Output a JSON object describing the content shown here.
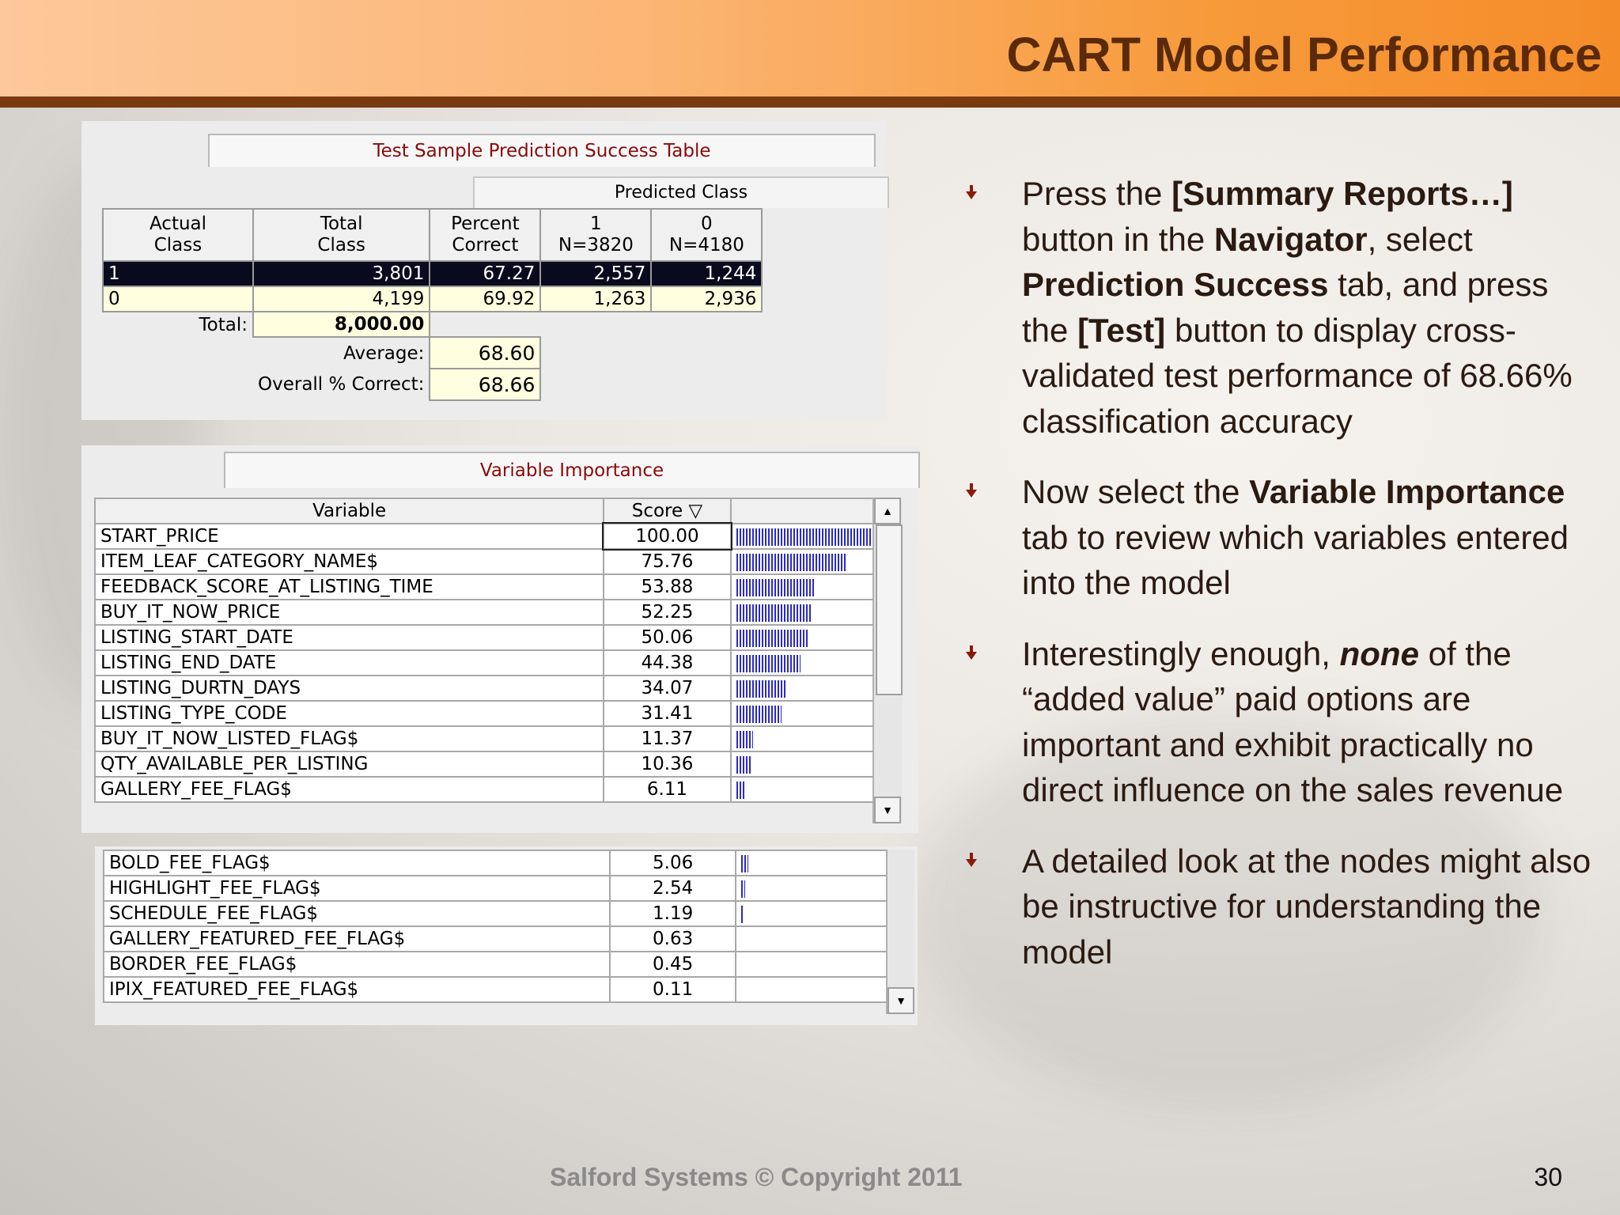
{
  "slide": {
    "title": "CART Model Performance",
    "footer": "Salford Systems   © Copyright 2011",
    "page_number": "30"
  },
  "prediction_table": {
    "caption": "Test Sample Prediction Success Table",
    "predicted_class_label": "Predicted Class",
    "headers": [
      [
        "Actual",
        "Class"
      ],
      [
        "Total",
        "Class"
      ],
      [
        "Percent",
        "Correct"
      ],
      [
        "1",
        "N=3820"
      ],
      [
        "0",
        "N=4180"
      ]
    ],
    "rows": [
      [
        "1",
        "3,801",
        "67.27",
        "2,557",
        "1,244"
      ],
      [
        "0",
        "4,199",
        "69.92",
        "1,263",
        "2,936"
      ]
    ],
    "total_label": "Total:",
    "total_value": "8,000.00",
    "average_label": "Average:",
    "average_value": "68.60",
    "overall_label": "Overall % Correct:",
    "overall_value": "68.66"
  },
  "variable_importance": {
    "caption": "Variable Importance",
    "col_variable": "Variable",
    "col_score": "Score",
    "rows": [
      {
        "variable": "START_PRICE",
        "score": "100.00",
        "value": 100.0
      },
      {
        "variable": "ITEM_LEAF_CATEGORY_NAME$",
        "score": "75.76",
        "value": 75.76
      },
      {
        "variable": "FEEDBACK_SCORE_AT_LISTING_TIME",
        "score": "53.88",
        "value": 53.88
      },
      {
        "variable": "BUY_IT_NOW_PRICE",
        "score": "52.25",
        "value": 52.25
      },
      {
        "variable": "LISTING_START_DATE",
        "score": "50.06",
        "value": 50.06
      },
      {
        "variable": "LISTING_END_DATE",
        "score": "44.38",
        "value": 44.38
      },
      {
        "variable": "LISTING_DURTN_DAYS",
        "score": "34.07",
        "value": 34.07
      },
      {
        "variable": "LISTING_TYPE_CODE",
        "score": "31.41",
        "value": 31.41
      },
      {
        "variable": "BUY_IT_NOW_LISTED_FLAG$",
        "score": "11.37",
        "value": 11.37
      },
      {
        "variable": "QTY_AVAILABLE_PER_LISTING",
        "score": "10.36",
        "value": 10.36
      },
      {
        "variable": "GALLERY_FEE_FLAG$",
        "score": "6.11",
        "value": 6.11
      }
    ],
    "rows_continued": [
      {
        "variable": "BOLD_FEE_FLAG$",
        "score": "5.06",
        "value": 5.06
      },
      {
        "variable": "HIGHLIGHT_FEE_FLAG$",
        "score": "2.54",
        "value": 2.54
      },
      {
        "variable": "SCHEDULE_FEE_FLAG$",
        "score": "1.19",
        "value": 1.19
      },
      {
        "variable": "GALLERY_FEATURED_FEE_FLAG$",
        "score": "0.63",
        "value": 0.63
      },
      {
        "variable": "BORDER_FEE_FLAG$",
        "score": "0.45",
        "value": 0.45
      },
      {
        "variable": "IPIX_FEATURED_FEE_FLAG$",
        "score": "0.11",
        "value": 0.11
      }
    ]
  },
  "bullets": [
    [
      {
        "t": "Press the ",
        "s": ""
      },
      {
        "t": "[Summary Reports…]",
        "s": "b"
      },
      {
        "t": " button in the ",
        "s": ""
      },
      {
        "t": "Navigator",
        "s": "b"
      },
      {
        "t": ", select ",
        "s": ""
      },
      {
        "t": "Prediction Success",
        "s": "b"
      },
      {
        "t": " tab, and press the ",
        "s": ""
      },
      {
        "t": "[Test]",
        "s": "b"
      },
      {
        "t": " button to display cross-validated test performance of 68.66% classification accuracy",
        "s": ""
      }
    ],
    [
      {
        "t": "Now select the ",
        "s": ""
      },
      {
        "t": "Variable Importance",
        "s": "b"
      },
      {
        "t": " tab to review which variables entered into the model",
        "s": ""
      }
    ],
    [
      {
        "t": "Interestingly enough, ",
        "s": ""
      },
      {
        "t": "none",
        "s": "bi"
      },
      {
        "t": " of the “added value” paid options are important and exhibit practically no direct influence on the sales revenue",
        "s": ""
      }
    ],
    [
      {
        "t": "A detailed look at the nodes might also be instructive for understanding the model",
        "s": ""
      }
    ]
  ],
  "colors": {
    "header_start": "#fdc89a",
    "header_end": "#f58c2a",
    "header_bar": "#7a3a10",
    "title": "#5a2a0a",
    "bullet_arrow": "#8a1a0a",
    "bar": "#2a2ac8"
  }
}
